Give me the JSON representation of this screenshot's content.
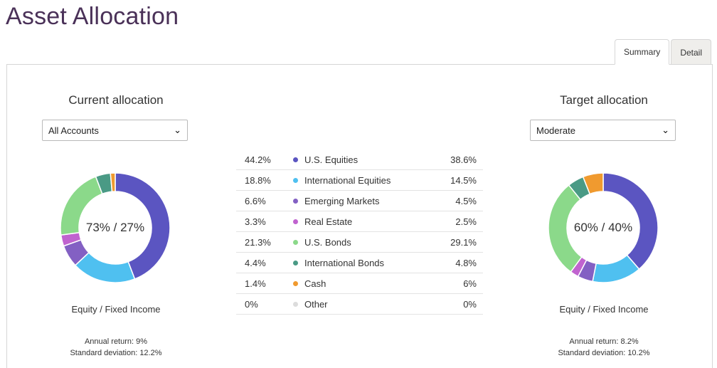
{
  "page": {
    "title": "Asset Allocation"
  },
  "tabs": [
    {
      "label": "Summary",
      "active": true
    },
    {
      "label": "Detail",
      "active": false
    }
  ],
  "current": {
    "title": "Current allocation",
    "select_value": "All Accounts",
    "center_label": "73% / 27%",
    "caption": "Equity / Fixed Income",
    "annual_return": "Annual return: 9%",
    "std_dev": "Standard deviation: 12.2%"
  },
  "target": {
    "title": "Target allocation",
    "select_value": "Moderate",
    "center_label": "60% / 40%",
    "caption": "Equity / Fixed Income",
    "annual_return": "Annual return: 8.2%",
    "std_dev": "Standard deviation: 10.2%"
  },
  "table": {
    "rows": [
      {
        "current": "44.2%",
        "label": "U.S. Equities",
        "target": "38.6%",
        "color": "#5b55c1"
      },
      {
        "current": "18.8%",
        "label": "International Equities",
        "target": "14.5%",
        "color": "#4fc0f0"
      },
      {
        "current": "6.6%",
        "label": "Emerging Markets",
        "target": "4.5%",
        "color": "#8360c3"
      },
      {
        "current": "3.3%",
        "label": "Real Estate",
        "target": "2.5%",
        "color": "#c063cf"
      },
      {
        "current": "21.3%",
        "label": "U.S. Bonds",
        "target": "29.1%",
        "color": "#8bd98a"
      },
      {
        "current": "4.4%",
        "label": "International Bonds",
        "target": "4.8%",
        "color": "#4a9a85"
      },
      {
        "current": "1.4%",
        "label": "Cash",
        "target": "6%",
        "color": "#f09a2f"
      },
      {
        "current": "0%",
        "label": "Other",
        "target": "0%",
        "color": "#dcdcdc"
      }
    ]
  },
  "chart_data": [
    {
      "type": "pie",
      "donut": true,
      "categories": [
        "U.S. Equities",
        "International Equities",
        "Emerging Markets",
        "Real Estate",
        "U.S. Bonds",
        "International Bonds",
        "Cash",
        "Other"
      ],
      "values": [
        44.2,
        18.8,
        6.6,
        3.3,
        21.3,
        4.4,
        1.4,
        0
      ],
      "colors": [
        "#5b55c1",
        "#4fc0f0",
        "#8360c3",
        "#c063cf",
        "#8bd98a",
        "#4a9a85",
        "#f09a2f",
        "#dcdcdc"
      ]
    },
    {
      "type": "pie",
      "donut": true,
      "categories": [
        "U.S. Equities",
        "International Equities",
        "Emerging Markets",
        "Real Estate",
        "U.S. Bonds",
        "International Bonds",
        "Cash",
        "Other"
      ],
      "values": [
        38.6,
        14.5,
        4.5,
        2.5,
        29.1,
        4.8,
        6,
        0
      ],
      "colors": [
        "#5b55c1",
        "#4fc0f0",
        "#8360c3",
        "#c063cf",
        "#8bd98a",
        "#4a9a85",
        "#f09a2f",
        "#dcdcdc"
      ]
    }
  ]
}
